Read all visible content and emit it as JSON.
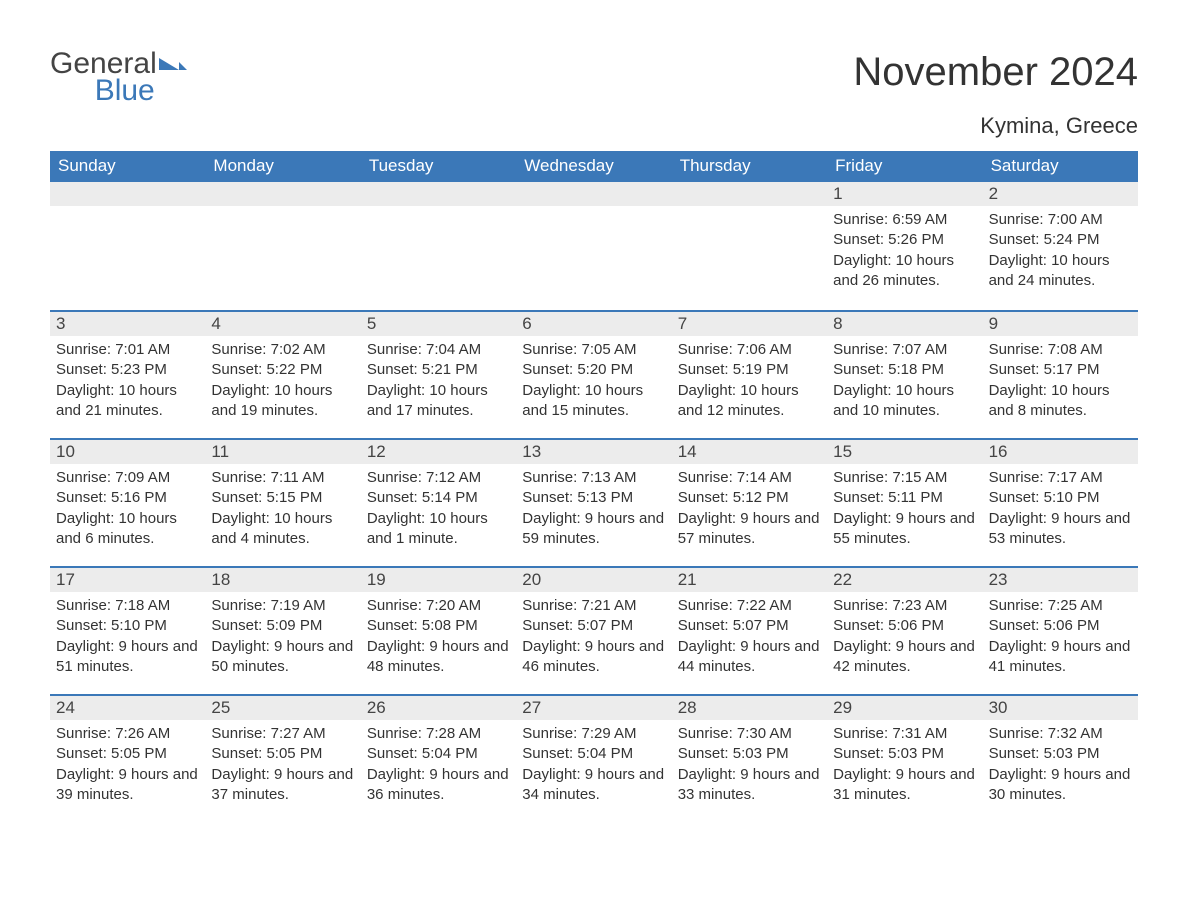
{
  "logo": {
    "general": "General",
    "blue": "Blue",
    "mark_color": "#3b78b8"
  },
  "title": "November 2024",
  "location": "Kymina, Greece",
  "colors": {
    "header_bg": "#3b78b8",
    "header_text": "#ffffff",
    "daynum_bg": "#ececec",
    "divider": "#3b78b8",
    "text": "#333333"
  },
  "weekdays": [
    "Sunday",
    "Monday",
    "Tuesday",
    "Wednesday",
    "Thursday",
    "Friday",
    "Saturday"
  ],
  "weeks": [
    [
      null,
      null,
      null,
      null,
      null,
      {
        "n": "1",
        "sunrise": "Sunrise: 6:59 AM",
        "sunset": "Sunset: 5:26 PM",
        "daylight": "Daylight: 10 hours and 26 minutes."
      },
      {
        "n": "2",
        "sunrise": "Sunrise: 7:00 AM",
        "sunset": "Sunset: 5:24 PM",
        "daylight": "Daylight: 10 hours and 24 minutes."
      }
    ],
    [
      {
        "n": "3",
        "sunrise": "Sunrise: 7:01 AM",
        "sunset": "Sunset: 5:23 PM",
        "daylight": "Daylight: 10 hours and 21 minutes."
      },
      {
        "n": "4",
        "sunrise": "Sunrise: 7:02 AM",
        "sunset": "Sunset: 5:22 PM",
        "daylight": "Daylight: 10 hours and 19 minutes."
      },
      {
        "n": "5",
        "sunrise": "Sunrise: 7:04 AM",
        "sunset": "Sunset: 5:21 PM",
        "daylight": "Daylight: 10 hours and 17 minutes."
      },
      {
        "n": "6",
        "sunrise": "Sunrise: 7:05 AM",
        "sunset": "Sunset: 5:20 PM",
        "daylight": "Daylight: 10 hours and 15 minutes."
      },
      {
        "n": "7",
        "sunrise": "Sunrise: 7:06 AM",
        "sunset": "Sunset: 5:19 PM",
        "daylight": "Daylight: 10 hours and 12 minutes."
      },
      {
        "n": "8",
        "sunrise": "Sunrise: 7:07 AM",
        "sunset": "Sunset: 5:18 PM",
        "daylight": "Daylight: 10 hours and 10 minutes."
      },
      {
        "n": "9",
        "sunrise": "Sunrise: 7:08 AM",
        "sunset": "Sunset: 5:17 PM",
        "daylight": "Daylight: 10 hours and 8 minutes."
      }
    ],
    [
      {
        "n": "10",
        "sunrise": "Sunrise: 7:09 AM",
        "sunset": "Sunset: 5:16 PM",
        "daylight": "Daylight: 10 hours and 6 minutes."
      },
      {
        "n": "11",
        "sunrise": "Sunrise: 7:11 AM",
        "sunset": "Sunset: 5:15 PM",
        "daylight": "Daylight: 10 hours and 4 minutes."
      },
      {
        "n": "12",
        "sunrise": "Sunrise: 7:12 AM",
        "sunset": "Sunset: 5:14 PM",
        "daylight": "Daylight: 10 hours and 1 minute."
      },
      {
        "n": "13",
        "sunrise": "Sunrise: 7:13 AM",
        "sunset": "Sunset: 5:13 PM",
        "daylight": "Daylight: 9 hours and 59 minutes."
      },
      {
        "n": "14",
        "sunrise": "Sunrise: 7:14 AM",
        "sunset": "Sunset: 5:12 PM",
        "daylight": "Daylight: 9 hours and 57 minutes."
      },
      {
        "n": "15",
        "sunrise": "Sunrise: 7:15 AM",
        "sunset": "Sunset: 5:11 PM",
        "daylight": "Daylight: 9 hours and 55 minutes."
      },
      {
        "n": "16",
        "sunrise": "Sunrise: 7:17 AM",
        "sunset": "Sunset: 5:10 PM",
        "daylight": "Daylight: 9 hours and 53 minutes."
      }
    ],
    [
      {
        "n": "17",
        "sunrise": "Sunrise: 7:18 AM",
        "sunset": "Sunset: 5:10 PM",
        "daylight": "Daylight: 9 hours and 51 minutes."
      },
      {
        "n": "18",
        "sunrise": "Sunrise: 7:19 AM",
        "sunset": "Sunset: 5:09 PM",
        "daylight": "Daylight: 9 hours and 50 minutes."
      },
      {
        "n": "19",
        "sunrise": "Sunrise: 7:20 AM",
        "sunset": "Sunset: 5:08 PM",
        "daylight": "Daylight: 9 hours and 48 minutes."
      },
      {
        "n": "20",
        "sunrise": "Sunrise: 7:21 AM",
        "sunset": "Sunset: 5:07 PM",
        "daylight": "Daylight: 9 hours and 46 minutes."
      },
      {
        "n": "21",
        "sunrise": "Sunrise: 7:22 AM",
        "sunset": "Sunset: 5:07 PM",
        "daylight": "Daylight: 9 hours and 44 minutes."
      },
      {
        "n": "22",
        "sunrise": "Sunrise: 7:23 AM",
        "sunset": "Sunset: 5:06 PM",
        "daylight": "Daylight: 9 hours and 42 minutes."
      },
      {
        "n": "23",
        "sunrise": "Sunrise: 7:25 AM",
        "sunset": "Sunset: 5:06 PM",
        "daylight": "Daylight: 9 hours and 41 minutes."
      }
    ],
    [
      {
        "n": "24",
        "sunrise": "Sunrise: 7:26 AM",
        "sunset": "Sunset: 5:05 PM",
        "daylight": "Daylight: 9 hours and 39 minutes."
      },
      {
        "n": "25",
        "sunrise": "Sunrise: 7:27 AM",
        "sunset": "Sunset: 5:05 PM",
        "daylight": "Daylight: 9 hours and 37 minutes."
      },
      {
        "n": "26",
        "sunrise": "Sunrise: 7:28 AM",
        "sunset": "Sunset: 5:04 PM",
        "daylight": "Daylight: 9 hours and 36 minutes."
      },
      {
        "n": "27",
        "sunrise": "Sunrise: 7:29 AM",
        "sunset": "Sunset: 5:04 PM",
        "daylight": "Daylight: 9 hours and 34 minutes."
      },
      {
        "n": "28",
        "sunrise": "Sunrise: 7:30 AM",
        "sunset": "Sunset: 5:03 PM",
        "daylight": "Daylight: 9 hours and 33 minutes."
      },
      {
        "n": "29",
        "sunrise": "Sunrise: 7:31 AM",
        "sunset": "Sunset: 5:03 PM",
        "daylight": "Daylight: 9 hours and 31 minutes."
      },
      {
        "n": "30",
        "sunrise": "Sunrise: 7:32 AM",
        "sunset": "Sunset: 5:03 PM",
        "daylight": "Daylight: 9 hours and 30 minutes."
      }
    ]
  ]
}
